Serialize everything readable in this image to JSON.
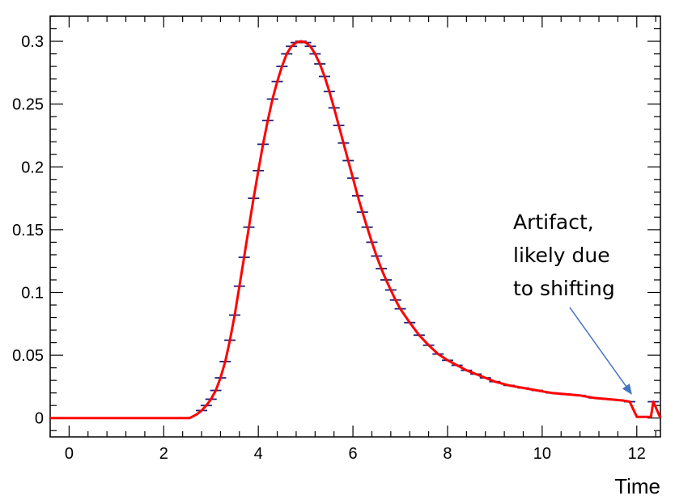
{
  "chart_data": {
    "type": "line",
    "title": "",
    "xlabel": "Time",
    "ylabel": "",
    "xlim": [
      -0.4,
      12.5
    ],
    "ylim": [
      -0.015,
      0.32
    ],
    "x_ticks": [
      0,
      2,
      4,
      6,
      8,
      10,
      12
    ],
    "x_tick_labels": [
      "0",
      "2",
      "4",
      "6",
      "8",
      "10",
      "12"
    ],
    "y_ticks": [
      0,
      0.05,
      0.1,
      0.15,
      0.2,
      0.25,
      0.3
    ],
    "y_tick_labels": [
      "0",
      "0.05",
      "0.1",
      "0.15",
      "0.2",
      "0.25",
      "0.3"
    ],
    "grid": false,
    "legend": "none",
    "line_color": "#ff0000",
    "marker_color": "#1a237e",
    "annotation_color": "#4472c4",
    "series": [
      {
        "x": [
          -0.4,
          2.55,
          2.6,
          2.7,
          2.8,
          2.9,
          3.0,
          3.1,
          3.2,
          3.3,
          3.4,
          3.5,
          3.6,
          3.7,
          3.8,
          3.9,
          4.0,
          4.1,
          4.2,
          4.3,
          4.4,
          4.5,
          4.6,
          4.7,
          4.8,
          4.9,
          5.0,
          5.1,
          5.2,
          5.3,
          5.4,
          5.5,
          5.6,
          5.7,
          5.8,
          5.9,
          6.0,
          6.1,
          6.2,
          6.3,
          6.4,
          6.5,
          6.6,
          6.7,
          6.8,
          6.9,
          7.0,
          7.2,
          7.4,
          7.6,
          7.8,
          8.0,
          8.2,
          8.4,
          8.6,
          8.8,
          9.0,
          9.3,
          9.6,
          9.9,
          10.2,
          10.5,
          10.8,
          11.1,
          11.4,
          11.7,
          11.85,
          12.0,
          12.15,
          12.3,
          12.35,
          12.5
        ],
        "y": [
          0,
          0,
          0.001,
          0.003,
          0.006,
          0.01,
          0.015,
          0.022,
          0.032,
          0.045,
          0.062,
          0.082,
          0.105,
          0.128,
          0.152,
          0.175,
          0.197,
          0.218,
          0.237,
          0.254,
          0.268,
          0.28,
          0.29,
          0.296,
          0.299,
          0.3,
          0.299,
          0.296,
          0.29,
          0.282,
          0.272,
          0.26,
          0.247,
          0.233,
          0.219,
          0.205,
          0.191,
          0.177,
          0.164,
          0.152,
          0.14,
          0.129,
          0.119,
          0.11,
          0.102,
          0.094,
          0.087,
          0.076,
          0.066,
          0.058,
          0.051,
          0.046,
          0.042,
          0.038,
          0.035,
          0.032,
          0.029,
          0.026,
          0.024,
          0.022,
          0.02,
          0.019,
          0.018,
          0.016,
          0.015,
          0.014,
          0.013,
          0.001,
          0.001,
          0.001,
          0.013,
          0
        ]
      }
    ],
    "error_bar_points": {
      "x": [
        2.8,
        2.9,
        3.0,
        3.1,
        3.2,
        3.3,
        3.4,
        3.5,
        3.6,
        3.7,
        3.8,
        3.9,
        4.0,
        4.1,
        4.2,
        4.3,
        4.4,
        4.5,
        4.6,
        4.7,
        4.8,
        4.9,
        5.0,
        5.1,
        5.2,
        5.3,
        5.4,
        5.5,
        5.6,
        5.7,
        5.8,
        5.9,
        6.0,
        6.1,
        6.2,
        6.3,
        6.4,
        6.5,
        6.6,
        6.7,
        6.8,
        6.9,
        7.0,
        7.2,
        7.4,
        7.6,
        7.8,
        8.0,
        8.2,
        8.4,
        8.6,
        8.8,
        9.0,
        9.3,
        9.6,
        9.9,
        10.2,
        10.5,
        10.8,
        11.1,
        11.4,
        11.85,
        12.35
      ],
      "y": [
        0.006,
        0.01,
        0.015,
        0.022,
        0.032,
        0.045,
        0.062,
        0.082,
        0.105,
        0.128,
        0.152,
        0.175,
        0.197,
        0.218,
        0.237,
        0.254,
        0.268,
        0.28,
        0.29,
        0.296,
        0.299,
        0.3,
        0.299,
        0.296,
        0.29,
        0.282,
        0.272,
        0.26,
        0.247,
        0.233,
        0.219,
        0.205,
        0.191,
        0.177,
        0.164,
        0.152,
        0.14,
        0.129,
        0.119,
        0.11,
        0.102,
        0.094,
        0.087,
        0.076,
        0.066,
        0.058,
        0.051,
        0.046,
        0.042,
        0.038,
        0.035,
        0.032,
        0.029,
        0.026,
        0.024,
        0.022,
        0.02,
        0.019,
        0.018,
        0.016,
        0.015,
        0.013,
        0.013
      ]
    },
    "annotation": {
      "lines": [
        "Artifact,",
        "likely due",
        "to shifting"
      ],
      "arrow_to": [
        11.9,
        0.016
      ]
    }
  }
}
